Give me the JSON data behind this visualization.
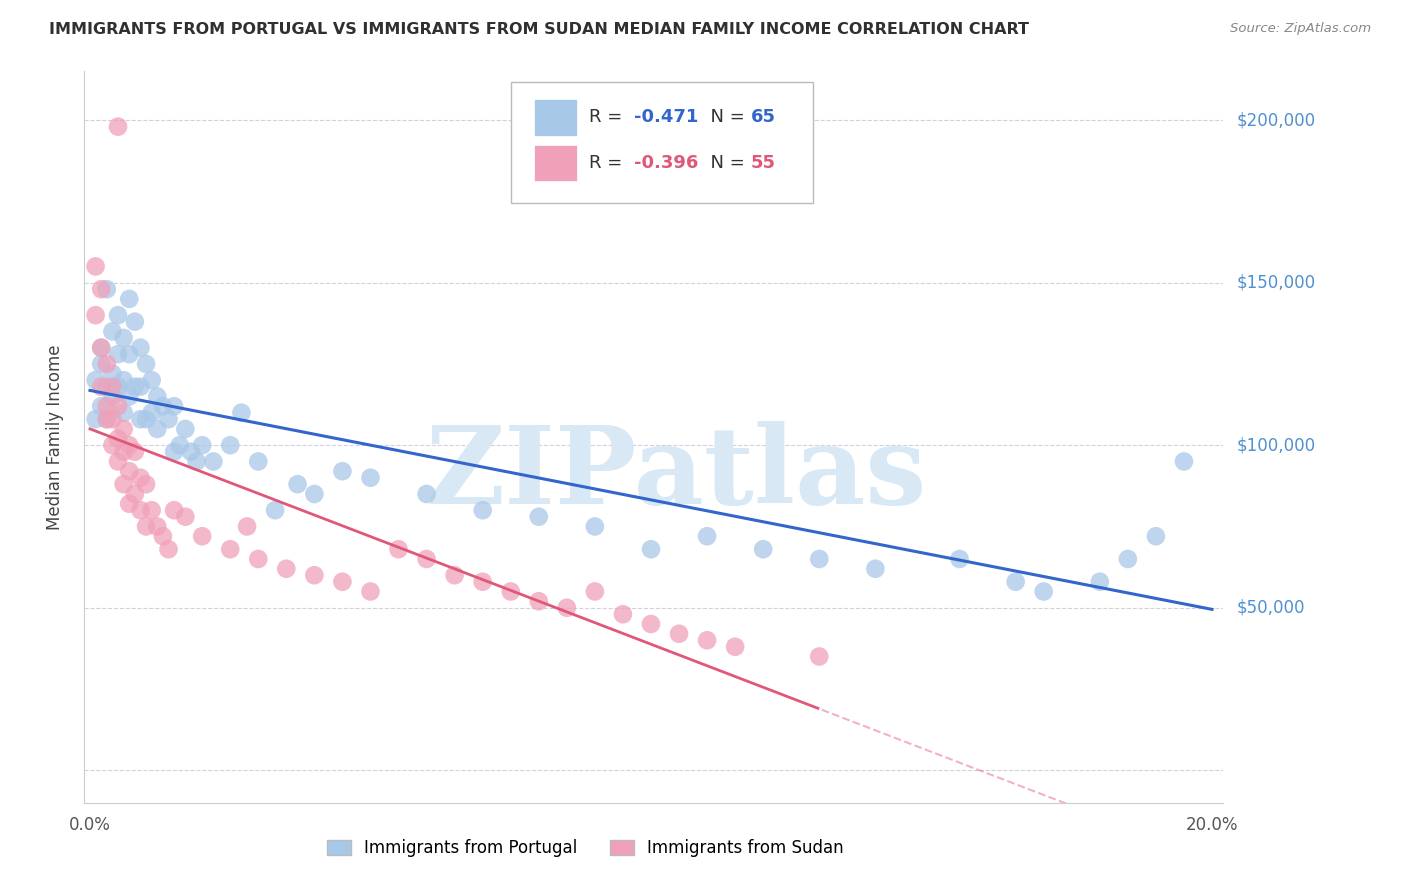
{
  "title": "IMMIGRANTS FROM PORTUGAL VS IMMIGRANTS FROM SUDAN MEDIAN FAMILY INCOME CORRELATION CHART",
  "source": "Source: ZipAtlas.com",
  "ylabel": "Median Family Income",
  "xlim": [
    -0.001,
    0.202
  ],
  "ylim": [
    -10000,
    215000
  ],
  "xticks": [
    0.0,
    0.05,
    0.1,
    0.15,
    0.2
  ],
  "xticklabels": [
    "0.0%",
    "",
    "",
    "",
    "20.0%"
  ],
  "yticks": [
    0,
    50000,
    100000,
    150000,
    200000
  ],
  "portugal_R": -0.471,
  "portugal_N": 65,
  "sudan_R": -0.396,
  "sudan_N": 55,
  "portugal_color": "#a8c8e8",
  "portugal_line_color": "#3366cc",
  "sudan_color": "#f0a0b8",
  "sudan_line_color": "#e05878",
  "watermark": "ZIPatlas",
  "watermark_color": "#d8e8f5",
  "background_color": "#ffffff",
  "grid_color": "#d0d0e0",
  "title_color": "#303030",
  "right_label_color": "#5090d0",
  "legend_label_portugal": "Immigrants from Portugal",
  "legend_label_sudan": "Immigrants from Sudan",
  "portugal_x": [
    0.001,
    0.003,
    0.001,
    0.002,
    0.002,
    0.002,
    0.003,
    0.003,
    0.004,
    0.004,
    0.004,
    0.005,
    0.005,
    0.005,
    0.006,
    0.006,
    0.006,
    0.007,
    0.007,
    0.007,
    0.008,
    0.008,
    0.009,
    0.009,
    0.009,
    0.01,
    0.01,
    0.011,
    0.011,
    0.012,
    0.012,
    0.013,
    0.014,
    0.015,
    0.015,
    0.016,
    0.017,
    0.018,
    0.019,
    0.02,
    0.022,
    0.025,
    0.027,
    0.03,
    0.033,
    0.037,
    0.04,
    0.045,
    0.05,
    0.06,
    0.07,
    0.08,
    0.09,
    0.1,
    0.11,
    0.12,
    0.13,
    0.14,
    0.155,
    0.165,
    0.17,
    0.18,
    0.185,
    0.19,
    0.195
  ],
  "portugal_y": [
    120000,
    148000,
    108000,
    125000,
    112000,
    130000,
    118000,
    108000,
    135000,
    122000,
    115000,
    140000,
    128000,
    118000,
    133000,
    120000,
    110000,
    145000,
    128000,
    115000,
    138000,
    118000,
    130000,
    118000,
    108000,
    125000,
    108000,
    120000,
    110000,
    115000,
    105000,
    112000,
    108000,
    112000,
    98000,
    100000,
    105000,
    98000,
    95000,
    100000,
    95000,
    100000,
    110000,
    95000,
    80000,
    88000,
    85000,
    92000,
    90000,
    85000,
    80000,
    78000,
    75000,
    68000,
    72000,
    68000,
    65000,
    62000,
    65000,
    58000,
    55000,
    58000,
    65000,
    72000,
    95000
  ],
  "sudan_x": [
    0.005,
    0.001,
    0.001,
    0.002,
    0.002,
    0.002,
    0.003,
    0.003,
    0.003,
    0.004,
    0.004,
    0.004,
    0.005,
    0.005,
    0.005,
    0.006,
    0.006,
    0.006,
    0.007,
    0.007,
    0.007,
    0.008,
    0.008,
    0.009,
    0.009,
    0.01,
    0.01,
    0.011,
    0.012,
    0.013,
    0.014,
    0.015,
    0.017,
    0.02,
    0.025,
    0.028,
    0.03,
    0.035,
    0.04,
    0.045,
    0.05,
    0.055,
    0.06,
    0.065,
    0.07,
    0.075,
    0.08,
    0.085,
    0.09,
    0.095,
    0.1,
    0.105,
    0.11,
    0.115,
    0.13
  ],
  "sudan_y": [
    198000,
    155000,
    140000,
    148000,
    130000,
    118000,
    125000,
    112000,
    108000,
    118000,
    108000,
    100000,
    112000,
    102000,
    95000,
    105000,
    98000,
    88000,
    100000,
    92000,
    82000,
    98000,
    85000,
    90000,
    80000,
    88000,
    75000,
    80000,
    75000,
    72000,
    68000,
    80000,
    78000,
    72000,
    68000,
    75000,
    65000,
    62000,
    60000,
    58000,
    55000,
    68000,
    65000,
    60000,
    58000,
    55000,
    52000,
    50000,
    55000,
    48000,
    45000,
    42000,
    40000,
    38000,
    35000
  ]
}
